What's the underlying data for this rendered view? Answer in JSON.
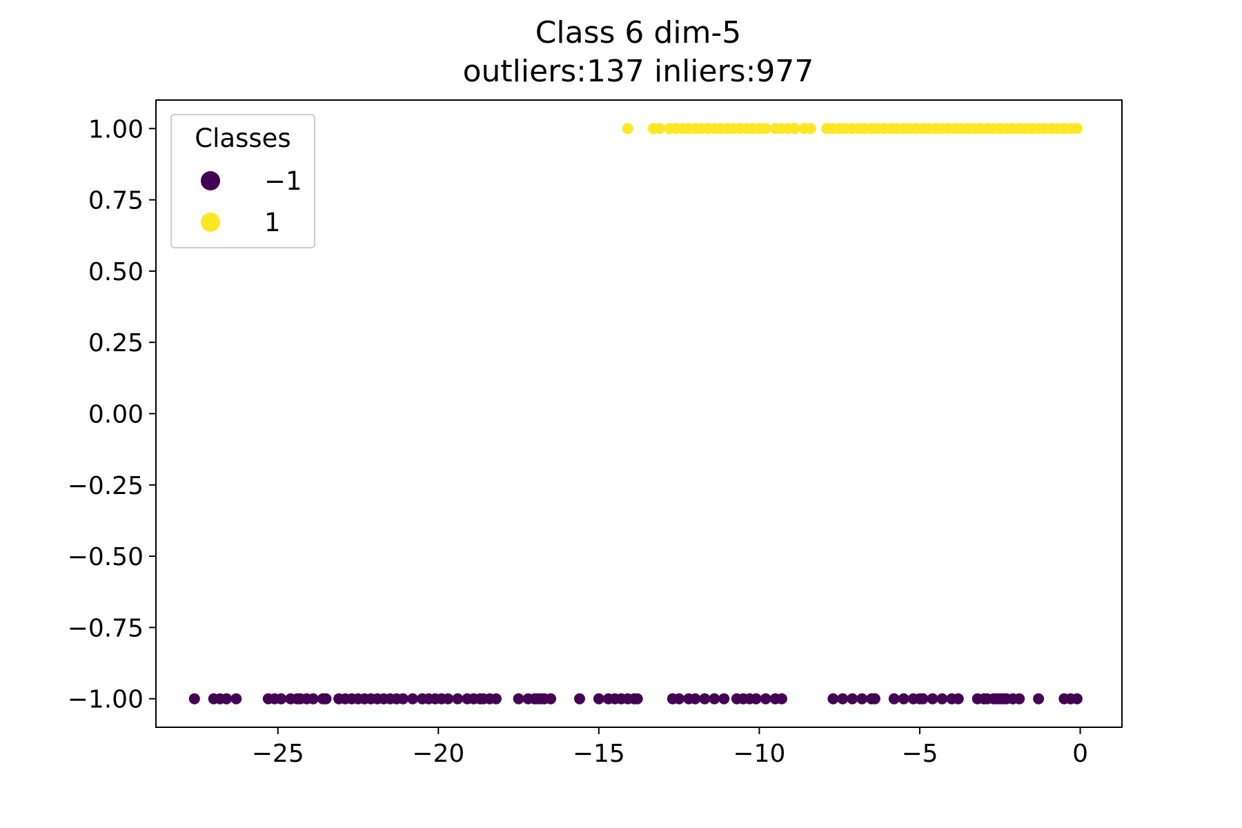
{
  "chart_data": {
    "type": "scatter",
    "title": "Class 6 dim-5",
    "subtitle": "outliers:137  inliers:977",
    "xlabel": "",
    "ylabel": "",
    "xlim": [
      -28.8,
      1.3
    ],
    "ylim": [
      -1.1,
      1.1
    ],
    "x_ticks": [
      -25,
      -20,
      -15,
      -10,
      -5,
      0
    ],
    "x_tick_labels": [
      "−25",
      "−20",
      "−15",
      "−10",
      "−5",
      "0"
    ],
    "y_ticks": [
      1.0,
      0.75,
      0.5,
      0.25,
      0.0,
      -0.25,
      -0.5,
      -0.75,
      -1.0
    ],
    "y_tick_labels": [
      "1.00",
      "0.75",
      "0.50",
      "0.25",
      "0.00",
      "−0.25",
      "−0.50",
      "−0.75",
      "−1.00"
    ],
    "grid": false,
    "legend": {
      "title": "Classes",
      "placement": "top-left",
      "entries": [
        {
          "label": "−1",
          "color": "#440154"
        },
        {
          "label": "1",
          "color": "#fde725"
        }
      ]
    },
    "series": [
      {
        "name": "−1",
        "color": "#440154",
        "y": -1.0,
        "x": [
          -27.6,
          -27.0,
          -26.8,
          -26.6,
          -26.3,
          -25.3,
          -25.1,
          -24.9,
          -24.6,
          -24.4,
          -24.3,
          -24.1,
          -23.9,
          -23.6,
          -23.5,
          -23.1,
          -22.9,
          -22.7,
          -22.5,
          -22.3,
          -22.1,
          -21.9,
          -21.7,
          -21.5,
          -21.3,
          -21.1,
          -20.8,
          -20.5,
          -20.3,
          -20.1,
          -19.9,
          -19.7,
          -19.4,
          -19.1,
          -18.9,
          -18.7,
          -18.6,
          -18.4,
          -18.2,
          -17.5,
          -17.2,
          -17.0,
          -16.9,
          -16.8,
          -16.7,
          -16.5,
          -15.6,
          -15.0,
          -14.7,
          -14.5,
          -14.3,
          -14.1,
          -13.9,
          -13.8,
          -12.7,
          -12.5,
          -12.2,
          -12.0,
          -11.7,
          -11.4,
          -11.1,
          -10.7,
          -10.5,
          -10.3,
          -10.1,
          -9.8,
          -9.5,
          -9.3,
          -7.7,
          -7.4,
          -7.1,
          -6.8,
          -6.5,
          -6.4,
          -5.8,
          -5.5,
          -5.2,
          -5.0,
          -4.9,
          -4.6,
          -4.3,
          -4.0,
          -3.8,
          -3.2,
          -3.0,
          -2.9,
          -2.7,
          -2.6,
          -2.5,
          -2.4,
          -2.3,
          -2.1,
          -1.9,
          -1.3,
          -0.5,
          -0.3,
          -0.1
        ]
      },
      {
        "name": "1",
        "color": "#fde725",
        "y": 1.0,
        "x": [
          -14.1,
          -13.3,
          -13.1,
          -12.8,
          -12.6,
          -12.4,
          -12.2,
          -12.0,
          -11.8,
          -11.6,
          -11.4,
          -11.2,
          -11.0,
          -10.8,
          -10.6,
          -10.4,
          -10.2,
          -10.0,
          -9.8,
          -9.5,
          -9.3,
          -9.1,
          -8.9,
          -8.6,
          -8.4,
          -7.9,
          -7.7,
          -7.5,
          -7.3,
          -7.1,
          -6.9,
          -6.7,
          -6.5,
          -6.3,
          -6.1,
          -5.9,
          -5.7,
          -5.5,
          -5.3,
          -5.1,
          -4.9,
          -4.7,
          -4.5,
          -4.3,
          -4.1,
          -3.9,
          -3.7,
          -3.5,
          -3.3,
          -3.1,
          -2.9,
          -2.7,
          -2.5,
          -2.3,
          -2.1,
          -1.9,
          -1.7,
          -1.5,
          -1.3,
          -1.1,
          -0.9,
          -0.7,
          -0.5,
          -0.3,
          -0.1
        ]
      }
    ]
  }
}
